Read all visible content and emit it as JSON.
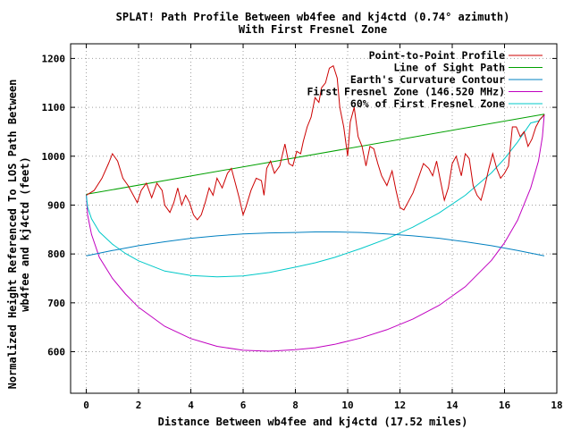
{
  "chart_data": {
    "type": "line",
    "title": "SPLAT! Path Profile Between wb4fee and kj4ctd (0.74° azimuth)",
    "subtitle": "With First Fresnel Zone",
    "xlabel": "Distance Between wb4fee and kj4ctd (17.52 miles)",
    "ylabel": [
      "Normalized Height Referenced To LOS Path Between",
      "wb4fee and kj4ctd (feet)"
    ],
    "xlim": [
      -0.6,
      18
    ],
    "ylim": [
      515,
      1230
    ],
    "xticks": [
      0,
      2,
      4,
      6,
      8,
      10,
      12,
      14,
      16,
      18
    ],
    "yticks": [
      600,
      700,
      800,
      900,
      1000,
      1100,
      1200
    ],
    "grid": true,
    "legend_position": "top-right",
    "series": [
      {
        "name": "Point-to-Point Profile",
        "color": "#cc0000",
        "x": [
          0,
          0.3,
          0.6,
          0.85,
          1.0,
          1.2,
          1.4,
          1.6,
          1.8,
          1.95,
          2.1,
          2.3,
          2.5,
          2.7,
          2.9,
          3.0,
          3.2,
          3.35,
          3.5,
          3.65,
          3.8,
          3.95,
          4.1,
          4.25,
          4.4,
          4.55,
          4.7,
          4.85,
          5.0,
          5.2,
          5.4,
          5.55,
          5.7,
          5.85,
          6.0,
          6.1,
          6.3,
          6.5,
          6.7,
          6.8,
          6.9,
          7.05,
          7.2,
          7.4,
          7.6,
          7.75,
          7.9,
          8.05,
          8.2,
          8.3,
          8.45,
          8.6,
          8.75,
          8.9,
          9.0,
          9.15,
          9.3,
          9.45,
          9.6,
          9.7,
          9.85,
          10.0,
          10.1,
          10.25,
          10.4,
          10.55,
          10.7,
          10.85,
          11.0,
          11.15,
          11.3,
          11.5,
          11.7,
          11.85,
          12.0,
          12.15,
          12.3,
          12.5,
          12.7,
          12.9,
          13.1,
          13.25,
          13.4,
          13.55,
          13.7,
          13.85,
          14.0,
          14.15,
          14.35,
          14.5,
          14.65,
          14.8,
          14.95,
          15.1,
          15.25,
          15.4,
          15.55,
          15.7,
          15.85,
          16.0,
          16.15,
          16.3,
          16.45,
          16.6,
          16.75,
          16.9,
          17.05,
          17.2,
          17.35,
          17.52
        ],
        "y": [
          920,
          930,
          955,
          985,
          1005,
          990,
          955,
          940,
          920,
          905,
          930,
          945,
          915,
          945,
          930,
          900,
          885,
          905,
          935,
          900,
          920,
          905,
          880,
          870,
          880,
          905,
          935,
          920,
          955,
          935,
          965,
          975,
          945,
          915,
          880,
          895,
          930,
          955,
          950,
          920,
          975,
          990,
          965,
          980,
          1025,
          985,
          980,
          1010,
          1005,
          1030,
          1060,
          1080,
          1120,
          1110,
          1140,
          1150,
          1180,
          1185,
          1160,
          1100,
          1060,
          1000,
          1070,
          1100,
          1040,
          1020,
          980,
          1020,
          1015,
          985,
          960,
          940,
          970,
          930,
          895,
          890,
          905,
          925,
          955,
          985,
          975,
          960,
          990,
          950,
          910,
          935,
          985,
          1000,
          960,
          1005,
          995,
          940,
          920,
          910,
          940,
          975,
          1005,
          975,
          955,
          965,
          980,
          1060,
          1060,
          1040,
          1050,
          1020,
          1035,
          1060,
          1075,
          1085
        ]
      },
      {
        "name": "Line of Sight Path",
        "color": "#00a000",
        "x": [
          0,
          17.52
        ],
        "y": [
          922,
          1086
        ]
      },
      {
        "name": "Earth's Curvature Contour",
        "color": "#0080c0",
        "x": [
          0,
          1,
          2,
          3,
          4,
          5,
          6,
          7,
          8,
          8.76,
          9.5,
          10.5,
          11.5,
          12.5,
          13.5,
          14.5,
          15.5,
          16.5,
          17.52
        ],
        "y": [
          796,
          807,
          817,
          825,
          832,
          837,
          841,
          843,
          844,
          845,
          845,
          844,
          841,
          837,
          832,
          825,
          817,
          807,
          796
        ]
      },
      {
        "name": "First Fresnel Zone (146.520 MHz)",
        "color": "#c000c0",
        "x": [
          0,
          0.05,
          0.2,
          0.5,
          1,
          1.5,
          2,
          3,
          4,
          5,
          6,
          7,
          8,
          8.76,
          9.5,
          10.5,
          11.5,
          12.5,
          13.5,
          14.5,
          15.5,
          16,
          16.5,
          17,
          17.3,
          17.45,
          17.52
        ],
        "y": [
          922,
          880,
          840,
          793,
          750,
          718,
          691,
          652,
          627,
          611,
          603,
          601,
          604,
          608,
          615,
          628,
          645,
          667,
          695,
          733,
          787,
          823,
          869,
          935,
          990,
          1040,
          1086
        ]
      },
      {
        "name": "60% of First Fresnel Zone",
        "color": "#00c8c8",
        "x": [
          0,
          0.05,
          0.2,
          0.5,
          1,
          1.5,
          2,
          3,
          4,
          5,
          6,
          7,
          8,
          8.76,
          9.5,
          10.5,
          11.5,
          12.5,
          13.5,
          14.5,
          15.5,
          16,
          16.5,
          17,
          17.3,
          17.45,
          17.52
        ],
        "y": [
          922,
          896,
          872,
          845,
          820,
          801,
          786,
          765,
          756,
          753,
          755,
          762,
          773,
          782,
          793,
          811,
          831,
          855,
          884,
          920,
          966,
          995,
          1029,
          1068,
          1072,
          1080,
          1086
        ]
      }
    ]
  }
}
